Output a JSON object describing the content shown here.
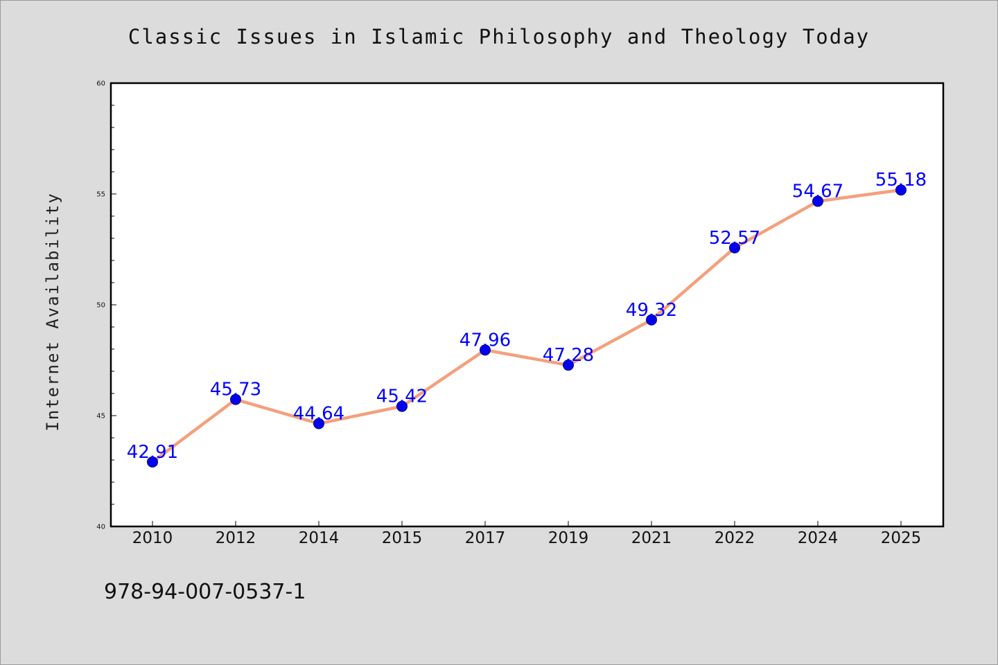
{
  "chart_data": {
    "type": "line",
    "title": "Classic Issues in Islamic Philosophy and Theology Today",
    "xlabel": "",
    "ylabel": "Internet Availability",
    "categories": [
      "2010",
      "2012",
      "2014",
      "2015",
      "2017",
      "2019",
      "2021",
      "2022",
      "2024",
      "2025"
    ],
    "values": [
      42.91,
      45.73,
      44.64,
      45.42,
      47.96,
      47.28,
      49.32,
      52.57,
      54.67,
      55.18
    ],
    "value_labels": [
      "42.91",
      "45.73",
      "44.64",
      "45.42",
      "47.96",
      "47.28",
      "49.32",
      "52.57",
      "54.67",
      "55.18"
    ],
    "ylim": [
      40,
      60
    ],
    "y_ticks": [
      "40",
      "45",
      "50",
      "55",
      "60"
    ],
    "grid": false,
    "colors": {
      "line": "#f4a07c",
      "marker": "#0000ee",
      "marker_edge": "#000080",
      "data_label": "#0000ff",
      "plot_bg": "#ffffff",
      "figure_bg": "#dcdcdc"
    }
  },
  "footer_text": "978-94-007-0537-1"
}
